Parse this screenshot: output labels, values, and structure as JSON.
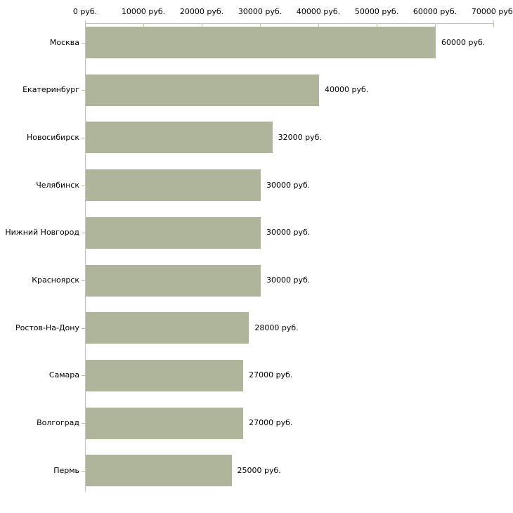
{
  "chart_data": {
    "type": "bar",
    "orientation": "horizontal",
    "categories": [
      "Москва",
      "Екатеринбург",
      "Новосибирск",
      "Челябинск",
      "Нижний Новгород",
      "Красноярск",
      "Ростов-На-Дону",
      "Самара",
      "Волгоград",
      "Пермь"
    ],
    "values": [
      60000,
      40000,
      32000,
      30000,
      30000,
      30000,
      28000,
      27000,
      27000,
      25000
    ],
    "value_labels": [
      "60000 руб.",
      "40000 руб.",
      "32000 руб.",
      "30000 руб.",
      "30000 руб.",
      "30000 руб.",
      "28000 руб.",
      "27000 руб.",
      "27000 руб.",
      "25000 руб."
    ],
    "x_axis": {
      "position": "top",
      "min": 0,
      "max": 70000,
      "tick_values": [
        0,
        10000,
        20000,
        30000,
        40000,
        50000,
        60000,
        70000
      ],
      "tick_labels": [
        "0 руб.",
        "10000 руб.",
        "20000 руб.",
        "30000 руб.",
        "40000 руб.",
        "50000 руб.",
        "60000 руб.",
        "70000 руб."
      ]
    },
    "grid": false,
    "legend": false,
    "colors": {
      "bar": "#afb59b",
      "axis_line": "#c2c2c2",
      "tick_mark": "#bdc09c",
      "text": "#000000",
      "background": "#ffffff"
    }
  }
}
